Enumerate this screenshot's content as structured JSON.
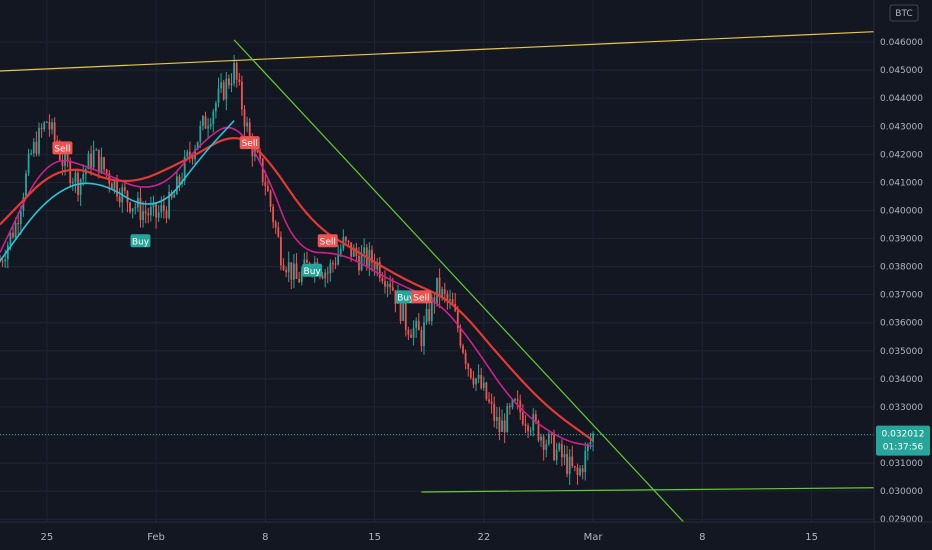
{
  "symbol_badge": "BTC",
  "price_label": {
    "price": "0.032012",
    "countdown": "01:37:56",
    "color": "#26a69a"
  },
  "colors": {
    "background": "#131722",
    "grid": "#1f2433",
    "up": "#26a69a",
    "down": "#ef5350",
    "ma_fast": "#d1208c",
    "ma_slow": "#e53935",
    "ma_teal": "#26c6da",
    "resistance": "#e8c54b",
    "trend": "#66cc33",
    "support": "#66cc33"
  },
  "chart_data": {
    "type": "candlestick",
    "title": "",
    "symbol": "BTC",
    "y_ticks": [
      "0.046000",
      "0.045000",
      "0.044000",
      "0.043000",
      "0.042000",
      "0.041000",
      "0.040000",
      "0.039000",
      "0.038000",
      "0.037000",
      "0.036000",
      "0.035000",
      "0.034000",
      "0.033000",
      "0.032000",
      "0.031000",
      "0.030000",
      "0.029000"
    ],
    "x_ticks": [
      "25",
      "Feb",
      "8",
      "15",
      "22",
      "Mar",
      "8",
      "15"
    ],
    "x_range": [
      "2021-01-22",
      "2021-03-19"
    ],
    "y_range": [
      0.0289,
      0.0475
    ],
    "last_price": 0.032012,
    "price_path": [
      [
        "2021-01-22",
        0.0382
      ],
      [
        "2021-01-23",
        0.0395
      ],
      [
        "2021-01-24",
        0.042
      ],
      [
        "2021-01-25",
        0.0432
      ],
      [
        "2021-01-26",
        0.0418
      ],
      [
        "2021-01-27",
        0.041
      ],
      [
        "2021-01-28",
        0.042
      ],
      [
        "2021-01-29",
        0.0412
      ],
      [
        "2021-01-30",
        0.0405
      ],
      [
        "2021-01-31",
        0.04
      ],
      [
        "2021-02-01",
        0.0398
      ],
      [
        "2021-02-02",
        0.0403
      ],
      [
        "2021-02-03",
        0.0418
      ],
      [
        "2021-02-04",
        0.043
      ],
      [
        "2021-02-05",
        0.044
      ],
      [
        "2021-02-06",
        0.045
      ],
      [
        "2021-02-07",
        0.0425
      ],
      [
        "2021-02-08",
        0.041
      ],
      [
        "2021-02-09",
        0.0385
      ],
      [
        "2021-02-10",
        0.0375
      ],
      [
        "2021-02-11",
        0.0382
      ],
      [
        "2021-02-12",
        0.0378
      ],
      [
        "2021-02-13",
        0.0388
      ],
      [
        "2021-02-14",
        0.0383
      ],
      [
        "2021-02-15",
        0.0382
      ],
      [
        "2021-02-16",
        0.0375
      ],
      [
        "2021-02-17",
        0.036
      ],
      [
        "2021-02-18",
        0.0355
      ],
      [
        "2021-02-19",
        0.0372
      ],
      [
        "2021-02-20",
        0.0365
      ],
      [
        "2021-02-21",
        0.0345
      ],
      [
        "2021-02-22",
        0.0335
      ],
      [
        "2021-02-23",
        0.0322
      ],
      [
        "2021-02-24",
        0.033
      ],
      [
        "2021-02-25",
        0.0325
      ],
      [
        "2021-02-26",
        0.0318
      ],
      [
        "2021-02-27",
        0.0312
      ],
      [
        "2021-02-28",
        0.0305
      ],
      [
        "2021-03-01",
        0.032
      ]
    ],
    "series": [
      {
        "name": "",
        "color": "#d1208c",
        "values": [
          [
            "2021-01-22",
            0.0385
          ],
          [
            "2021-01-25",
            0.042
          ],
          [
            "2021-01-28",
            0.0415
          ],
          [
            "2021-02-01",
            0.0405
          ],
          [
            "2021-02-04",
            0.0425
          ],
          [
            "2021-02-06",
            0.0432
          ],
          [
            "2021-02-08",
            0.0415
          ],
          [
            "2021-02-10",
            0.0385
          ],
          [
            "2021-02-13",
            0.0385
          ],
          [
            "2021-02-16",
            0.0375
          ],
          [
            "2021-02-19",
            0.0368
          ],
          [
            "2021-02-21",
            0.0355
          ],
          [
            "2021-02-24",
            0.033
          ],
          [
            "2021-02-27",
            0.0318
          ],
          [
            "2021-03-01",
            0.0316
          ]
        ]
      },
      {
        "name": "",
        "color": "#e53935",
        "values": [
          [
            "2021-01-22",
            0.0395
          ],
          [
            "2021-01-26",
            0.0418
          ],
          [
            "2021-01-30",
            0.0408
          ],
          [
            "2021-02-03",
            0.0418
          ],
          [
            "2021-02-06",
            0.0428
          ],
          [
            "2021-02-08",
            0.042
          ],
          [
            "2021-02-11",
            0.0395
          ],
          [
            "2021-02-14",
            0.0385
          ],
          [
            "2021-02-17",
            0.0375
          ],
          [
            "2021-02-20",
            0.0368
          ],
          [
            "2021-02-23",
            0.0348
          ],
          [
            "2021-02-26",
            0.033
          ],
          [
            "2021-03-01",
            0.0318
          ]
        ]
      },
      {
        "name": "",
        "color": "#26c6da",
        "values": [
          [
            "2021-01-22",
            0.0382
          ],
          [
            "2021-01-25",
            0.0405
          ],
          [
            "2021-01-28",
            0.0412
          ],
          [
            "2021-02-01",
            0.0398
          ],
          [
            "2021-02-04",
            0.042
          ],
          [
            "2021-02-06",
            0.0432
          ]
        ]
      }
    ],
    "trendlines": [
      {
        "role": "resistance",
        "color": "#e8c54b",
        "from": [
          "2021-01-22",
          0.04497
        ],
        "to": [
          "2021-03-19",
          0.04637
        ]
      },
      {
        "role": "downtrend",
        "color": "#66cc33",
        "from": [
          "2021-02-06",
          0.04608
        ],
        "to": [
          "2021-03-07",
          0.02878
        ]
      },
      {
        "role": "support",
        "color": "#66cc33",
        "from": [
          "2021-02-18",
          0.02997
        ],
        "to": [
          "2021-03-19",
          0.03012
        ]
      }
    ],
    "signals": [
      {
        "label": "Sell",
        "kind": "sell",
        "date": "2021-01-26",
        "price": 0.04223
      },
      {
        "label": "Buy",
        "kind": "buy",
        "date": "2021-01-31",
        "price": 0.03892
      },
      {
        "label": "Sell",
        "kind": "sell",
        "date": "2021-02-07",
        "price": 0.04242
      },
      {
        "label": "Buy",
        "kind": "buy",
        "date": "2021-02-11",
        "price": 0.03787
      },
      {
        "label": "Sell",
        "kind": "sell",
        "date": "2021-02-12",
        "price": 0.03892
      },
      {
        "label": "Buy",
        "kind": "buy",
        "date": "2021-02-17",
        "price": 0.03692
      },
      {
        "label": "Sell",
        "kind": "sell",
        "date": "2021-02-18",
        "price": 0.03692
      }
    ]
  }
}
